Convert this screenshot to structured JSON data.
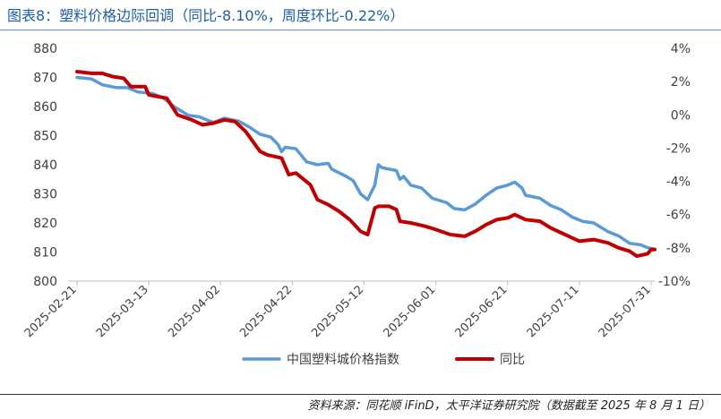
{
  "title": "图表8：塑料价格边际回调（同比-8.10%，周度环比-0.22%）",
  "source": "资料来源：同花顺 iFinD，太平洋证券研究院（数据截至 2025 年 8 月 1 日）",
  "chart_data": {
    "type": "line",
    "x_ticks": [
      "2025-02-21",
      "2025-03-13",
      "2025-04-02",
      "2025-04-22",
      "2025-05-12",
      "2025-06-01",
      "2025-06-21",
      "2025-07-11",
      "2025-07-31"
    ],
    "y_left": {
      "ticks": [
        "800",
        "810",
        "820",
        "830",
        "840",
        "850",
        "860",
        "870",
        "880"
      ],
      "lim": [
        800,
        880
      ]
    },
    "y_right": {
      "ticks": [
        "-10%",
        "-8%",
        "-6%",
        "-4%",
        "-2%",
        "0%",
        "2%",
        "4%"
      ],
      "lim": [
        -10,
        4
      ]
    },
    "grid": false,
    "legend_position": "bottom",
    "series": [
      {
        "name": "中国塑料城价格指数",
        "axis": "left",
        "color": "#5b9bd5",
        "points": [
          [
            "2025-02-21",
            870
          ],
          [
            "2025-02-25",
            869.5
          ],
          [
            "2025-02-28",
            867.5
          ],
          [
            "2025-03-04",
            866.5
          ],
          [
            "2025-03-07",
            866.5
          ],
          [
            "2025-03-10",
            865
          ],
          [
            "2025-03-14",
            864.5
          ],
          [
            "2025-03-17",
            863
          ],
          [
            "2025-03-20",
            860
          ],
          [
            "2025-03-24",
            857
          ],
          [
            "2025-03-27",
            856.5
          ],
          [
            "2025-03-31",
            854.5
          ],
          [
            "2025-04-03",
            856
          ],
          [
            "2025-04-07",
            855
          ],
          [
            "2025-04-10",
            853
          ],
          [
            "2025-04-13",
            850.5
          ],
          [
            "2025-04-16",
            849.5
          ],
          [
            "2025-04-18",
            847
          ],
          [
            "2025-04-19",
            844.5
          ],
          [
            "2025-04-20",
            846
          ],
          [
            "2025-04-23",
            845.5
          ],
          [
            "2025-04-26",
            841
          ],
          [
            "2025-04-29",
            840
          ],
          [
            "2025-05-02",
            840.5
          ],
          [
            "2025-05-03",
            838.5
          ],
          [
            "2025-05-07",
            836
          ],
          [
            "2025-05-09",
            834.5
          ],
          [
            "2025-05-11",
            830
          ],
          [
            "2025-05-13",
            828
          ],
          [
            "2025-05-15",
            833
          ],
          [
            "2025-05-16",
            840
          ],
          [
            "2025-05-17",
            839
          ],
          [
            "2025-05-21",
            838
          ],
          [
            "2025-05-22",
            835
          ],
          [
            "2025-05-23",
            836
          ],
          [
            "2025-05-25",
            833
          ],
          [
            "2025-05-28",
            832
          ],
          [
            "2025-05-31",
            828.5
          ],
          [
            "2025-06-04",
            827
          ],
          [
            "2025-06-06",
            825
          ],
          [
            "2025-06-09",
            824.5
          ],
          [
            "2025-06-12",
            826.5
          ],
          [
            "2025-06-15",
            829.5
          ],
          [
            "2025-06-18",
            832
          ],
          [
            "2025-06-21",
            833
          ],
          [
            "2025-06-23",
            834
          ],
          [
            "2025-06-25",
            832
          ],
          [
            "2025-06-26",
            829.5
          ],
          [
            "2025-06-30",
            828.5
          ],
          [
            "2025-07-03",
            826
          ],
          [
            "2025-07-06",
            824.5
          ],
          [
            "2025-07-09",
            822
          ],
          [
            "2025-07-12",
            820.5
          ],
          [
            "2025-07-15",
            820
          ],
          [
            "2025-07-19",
            817
          ],
          [
            "2025-07-22",
            815.5
          ],
          [
            "2025-07-25",
            813
          ],
          [
            "2025-07-28",
            812.5
          ],
          [
            "2025-07-30",
            811.5
          ],
          [
            "2025-08-01",
            811
          ]
        ]
      },
      {
        "name": "同比",
        "axis": "right",
        "color": "#c00000",
        "points": [
          [
            "2025-02-21",
            2.6
          ],
          [
            "2025-02-25",
            2.5
          ],
          [
            "2025-02-28",
            2.5
          ],
          [
            "2025-03-03",
            2.3
          ],
          [
            "2025-03-06",
            2.2
          ],
          [
            "2025-03-08",
            1.7
          ],
          [
            "2025-03-12",
            1.7
          ],
          [
            "2025-03-13",
            1.2
          ],
          [
            "2025-03-18",
            1.0
          ],
          [
            "2025-03-21",
            0.0
          ],
          [
            "2025-03-25",
            -0.3
          ],
          [
            "2025-03-28",
            -0.6
          ],
          [
            "2025-03-31",
            -0.5
          ],
          [
            "2025-04-03",
            -0.3
          ],
          [
            "2025-04-06",
            -0.4
          ],
          [
            "2025-04-09",
            -1.0
          ],
          [
            "2025-04-13",
            -2.2
          ],
          [
            "2025-04-15",
            -2.4
          ],
          [
            "2025-04-19",
            -2.6
          ],
          [
            "2025-04-21",
            -3.6
          ],
          [
            "2025-04-23",
            -3.5
          ],
          [
            "2025-04-27",
            -4.2
          ],
          [
            "2025-04-29",
            -5.1
          ],
          [
            "2025-05-02",
            -5.4
          ],
          [
            "2025-05-05",
            -5.8
          ],
          [
            "2025-05-08",
            -6.3
          ],
          [
            "2025-05-11",
            -7.0
          ],
          [
            "2025-05-13",
            -7.2
          ],
          [
            "2025-05-15",
            -5.6
          ],
          [
            "2025-05-16",
            -5.5
          ],
          [
            "2025-05-19",
            -5.5
          ],
          [
            "2025-05-21",
            -5.7
          ],
          [
            "2025-05-22",
            -6.4
          ],
          [
            "2025-05-25",
            -6.5
          ],
          [
            "2025-05-29",
            -6.7
          ],
          [
            "2025-06-01",
            -6.9
          ],
          [
            "2025-06-05",
            -7.2
          ],
          [
            "2025-06-09",
            -7.3
          ],
          [
            "2025-06-12",
            -7.0
          ],
          [
            "2025-06-15",
            -6.6
          ],
          [
            "2025-06-18",
            -6.3
          ],
          [
            "2025-06-21",
            -6.2
          ],
          [
            "2025-06-23",
            -6.0
          ],
          [
            "2025-06-26",
            -6.3
          ],
          [
            "2025-06-30",
            -6.4
          ],
          [
            "2025-07-03",
            -6.8
          ],
          [
            "2025-07-07",
            -7.2
          ],
          [
            "2025-07-11",
            -7.6
          ],
          [
            "2025-07-15",
            -7.5
          ],
          [
            "2025-07-19",
            -7.7
          ],
          [
            "2025-07-22",
            -8.0
          ],
          [
            "2025-07-25",
            -8.2
          ],
          [
            "2025-07-27",
            -8.5
          ],
          [
            "2025-07-29",
            -8.4
          ],
          [
            "2025-07-30",
            -8.35
          ],
          [
            "2025-07-31",
            -8.1
          ],
          [
            "2025-08-01",
            -8.1
          ]
        ]
      }
    ]
  }
}
